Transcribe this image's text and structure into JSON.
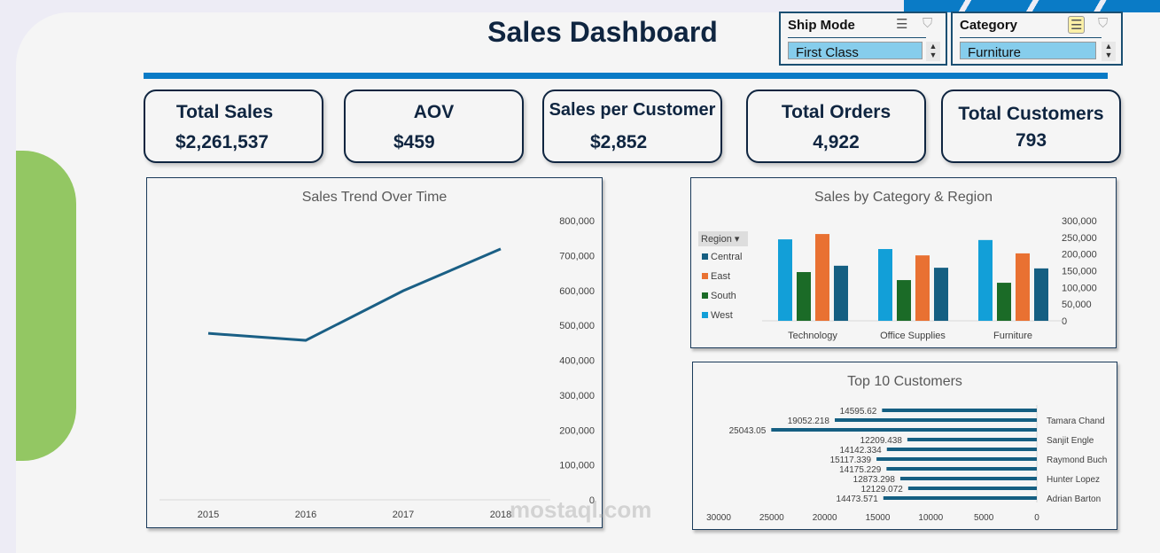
{
  "header": {
    "title": "Sales Dashboard"
  },
  "slicers": [
    {
      "label": "Ship Mode",
      "selected": "First Class",
      "icons": [
        "multi-select-icon",
        "clear-filter-icon"
      ]
    },
    {
      "label": "Category",
      "selected": "Furniture",
      "icons": [
        "multi-select-icon",
        "clear-filter-icon"
      ]
    }
  ],
  "kpis": [
    {
      "label": "Total Sales",
      "value": "$2,261,537"
    },
    {
      "label": "AOV",
      "value": "$459"
    },
    {
      "label": "Sales per Customer",
      "value": "$2,852"
    },
    {
      "label": "Total Orders",
      "value": "4,922"
    },
    {
      "label": "Total Customers",
      "value": "793"
    }
  ],
  "colors": {
    "accent": "#0a7bc6",
    "navy": "#0f2540",
    "line": "#1a5f85",
    "green": "#93c763"
  },
  "watermark": "mostaql.com",
  "chart_data": [
    {
      "type": "line",
      "title": "Sales Trend Over Time",
      "categories": [
        "2015",
        "2016",
        "2017",
        "2018"
      ],
      "values": [
        477000,
        457000,
        599000,
        719000
      ],
      "ylim": [
        0,
        800000
      ],
      "yticks": [
        "0",
        "100,000",
        "200,000",
        "300,000",
        "400,000",
        "500,000",
        "600,000",
        "700,000",
        "800,000"
      ],
      "color": "#1a5f85",
      "grid": false
    },
    {
      "type": "bar",
      "title": "Sales by Category & Region",
      "categories": [
        "Technology",
        "Office Supplies",
        "Furniture"
      ],
      "legend_title": "Region",
      "legend": "left",
      "ylim": [
        0,
        300000
      ],
      "yticks": [
        "0",
        "50,000",
        "100,000",
        "150,000",
        "200,000",
        "250,000",
        "300,000"
      ],
      "series": [
        {
          "name": "West",
          "color": "#129fd8",
          "values": [
            244000,
            215000,
            242000
          ]
        },
        {
          "name": "South",
          "color": "#1b6b27",
          "values": [
            146000,
            122000,
            114000
          ]
        },
        {
          "name": "East",
          "color": "#e97132",
          "values": [
            260000,
            196000,
            202000
          ]
        },
        {
          "name": "Central",
          "color": "#155f82",
          "values": [
            165000,
            159000,
            157000
          ]
        }
      ],
      "legend_order": [
        "Central",
        "East",
        "South",
        "West"
      ]
    },
    {
      "type": "bar",
      "orientation": "horizontal",
      "title": "Top 10 Customers",
      "xlim": [
        0,
        30000
      ],
      "xticks": [
        "30000",
        "25000",
        "20000",
        "15000",
        "10000",
        "5000",
        "0"
      ],
      "labels": [
        "",
        "Tamara Chand",
        "",
        "Sanjit Engle",
        "",
        "Raymond Buch",
        "",
        "Hunter Lopez",
        "",
        "Adrian Barton"
      ],
      "values": [
        14595.62,
        19052.218,
        25043.05,
        12209.438,
        14142.334,
        15117.339,
        14175.229,
        12873.298,
        12129.072,
        14473.571
      ],
      "value_labels": [
        "14595.62",
        "19052.218",
        "25043.05",
        "12209.438",
        "14142.334",
        "15117.339",
        "14175.229",
        "12873.298",
        "12129.072",
        "14473.571"
      ],
      "color": "#155f82"
    }
  ]
}
